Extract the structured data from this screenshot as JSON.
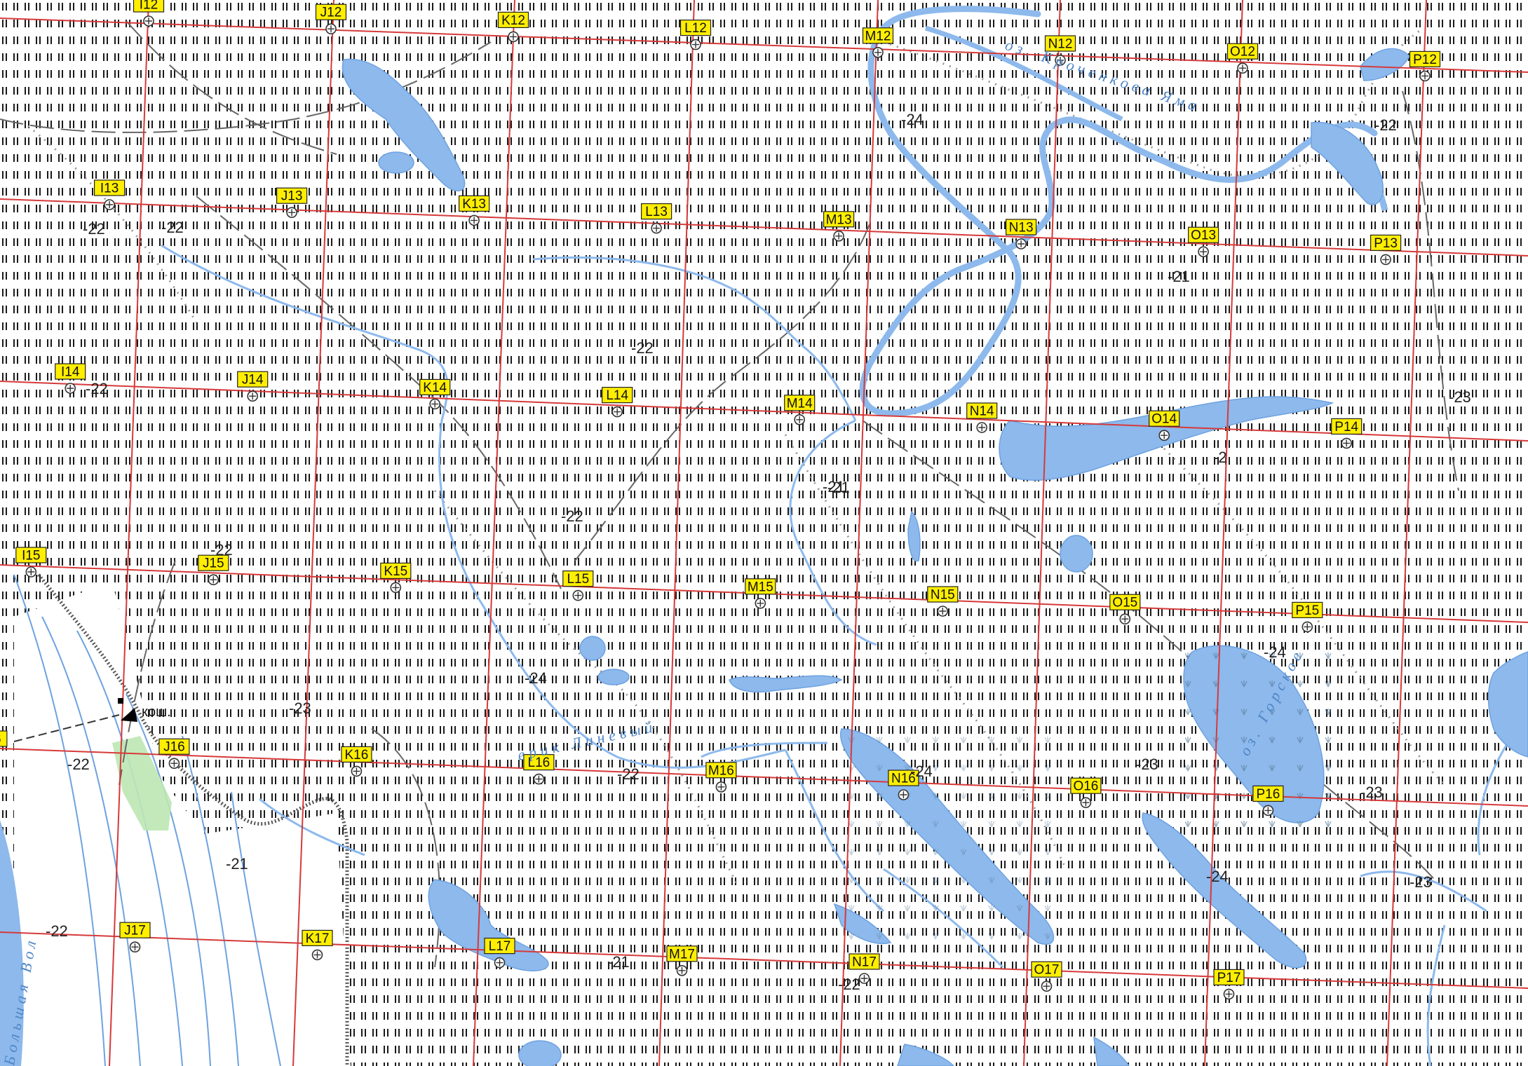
{
  "map": {
    "grid": {
      "columns": [
        "I",
        "J",
        "K",
        "L",
        "M",
        "N",
        "O",
        "P"
      ],
      "rows": [
        12,
        13,
        14,
        15,
        16,
        17
      ]
    },
    "elevation_labels": [
      "-22",
      "-24",
      "-22",
      "-21",
      "-22",
      "-23",
      "-22",
      "-22",
      "-22",
      "-21",
      "-2",
      "-22",
      "-24",
      "-24",
      "-23",
      "-22",
      "-24",
      "-23",
      "-23",
      "-21",
      "-24",
      "-23",
      "-22",
      "-21",
      "-22",
      "-22",
      "-21"
    ],
    "place_labels": [
      "кош."
    ],
    "water_labels": [
      "оз. Кроченкова Яма",
      "ерик Линевый",
      "оз. Горское",
      "Большая Вол"
    ],
    "colors": {
      "grid_line": "#d63a3a",
      "water": "#8db9ec",
      "water_stroke": "#6ea2e0",
      "marsh_symbol": "#111111",
      "label_bg": "#ffee00",
      "vegetation": "#bde7b4",
      "railway": "#555555"
    }
  }
}
